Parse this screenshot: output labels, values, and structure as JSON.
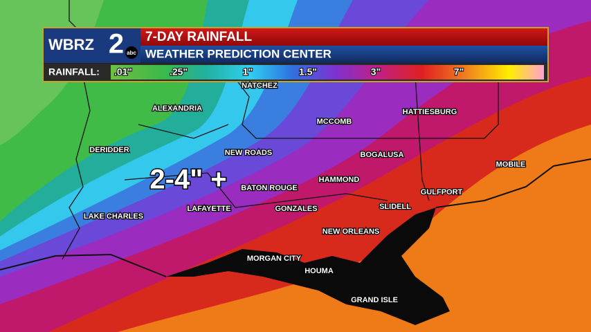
{
  "header": {
    "logo": "WBRZ",
    "logo_number": "2",
    "logo_network": "abc",
    "title": "7-DAY RAINFALL",
    "subtitle": "WEATHER PREDICTION CENTER"
  },
  "legend": {
    "label": "RAINFALL:",
    "stops": [
      ".01\"",
      ".25\"",
      "1\"",
      "1.5\"",
      "3\"",
      "7\""
    ]
  },
  "annotation": "2-4\" +",
  "cities": [
    "NATCHEZ",
    "ALEXANDRIA",
    "MCCOMB",
    "HATTIESBURG",
    "DERIDDER",
    "NEW ROADS",
    "BOGALUSA",
    "MOBILE",
    "HAMMOND",
    "BATON ROUGE",
    "GULFPORT",
    "LAFAYETTE",
    "GONZALES",
    "SLIDELL",
    "LAKE CHARLES",
    "NEW ORLEANS",
    "MORGAN CITY",
    "HOUMA",
    "GRAND ISLE"
  ]
}
